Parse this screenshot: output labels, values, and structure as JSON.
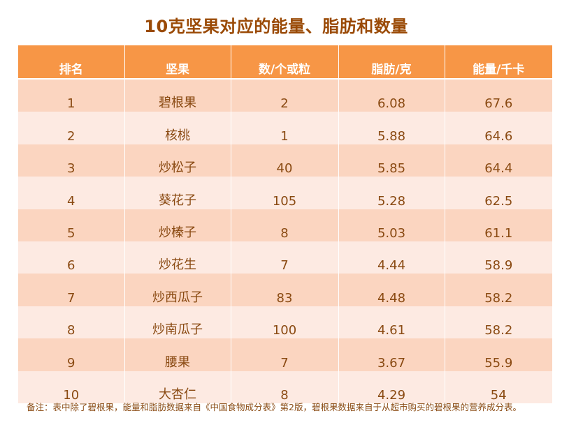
{
  "title": "10克坚果对应的能量、脂肪和数量",
  "table": {
    "headers": [
      "排名",
      "坚果",
      "数/个或粒",
      "脂肪/克",
      "能量/千卡"
    ],
    "rows": [
      [
        "1",
        "碧根果",
        "2",
        "6.08",
        "67.6"
      ],
      [
        "2",
        "核桃",
        "1",
        "5.88",
        "64.6"
      ],
      [
        "3",
        "炒松子",
        "40",
        "5.85",
        "64.4"
      ],
      [
        "4",
        "葵花子",
        "105",
        "5.28",
        "62.5"
      ],
      [
        "5",
        "炒榛子",
        "8",
        "5.03",
        "61.1"
      ],
      [
        "6",
        "炒花生",
        "7",
        "4.44",
        "58.9"
      ],
      [
        "7",
        "炒西瓜子",
        "83",
        "4.48",
        "58.2"
      ],
      [
        "8",
        "炒南瓜子",
        "100",
        "4.61",
        "58.2"
      ],
      [
        "9",
        "腰果",
        "7",
        "3.67",
        "55.9"
      ],
      [
        "10",
        "大杏仁",
        "8",
        "4.29",
        "54"
      ]
    ]
  },
  "note": "备注：表中除了碧根果，能量和脂肪数据来自《中国食物成分表》第2版，碧根果数据来自于从超市购买的碧根果的营养成分表。",
  "colors": {
    "title": "#9a4a06",
    "header_bg": "#f79646",
    "row_odd": "#fbd5c0",
    "row_even": "#fdeae2",
    "text": "#8a4a12"
  }
}
